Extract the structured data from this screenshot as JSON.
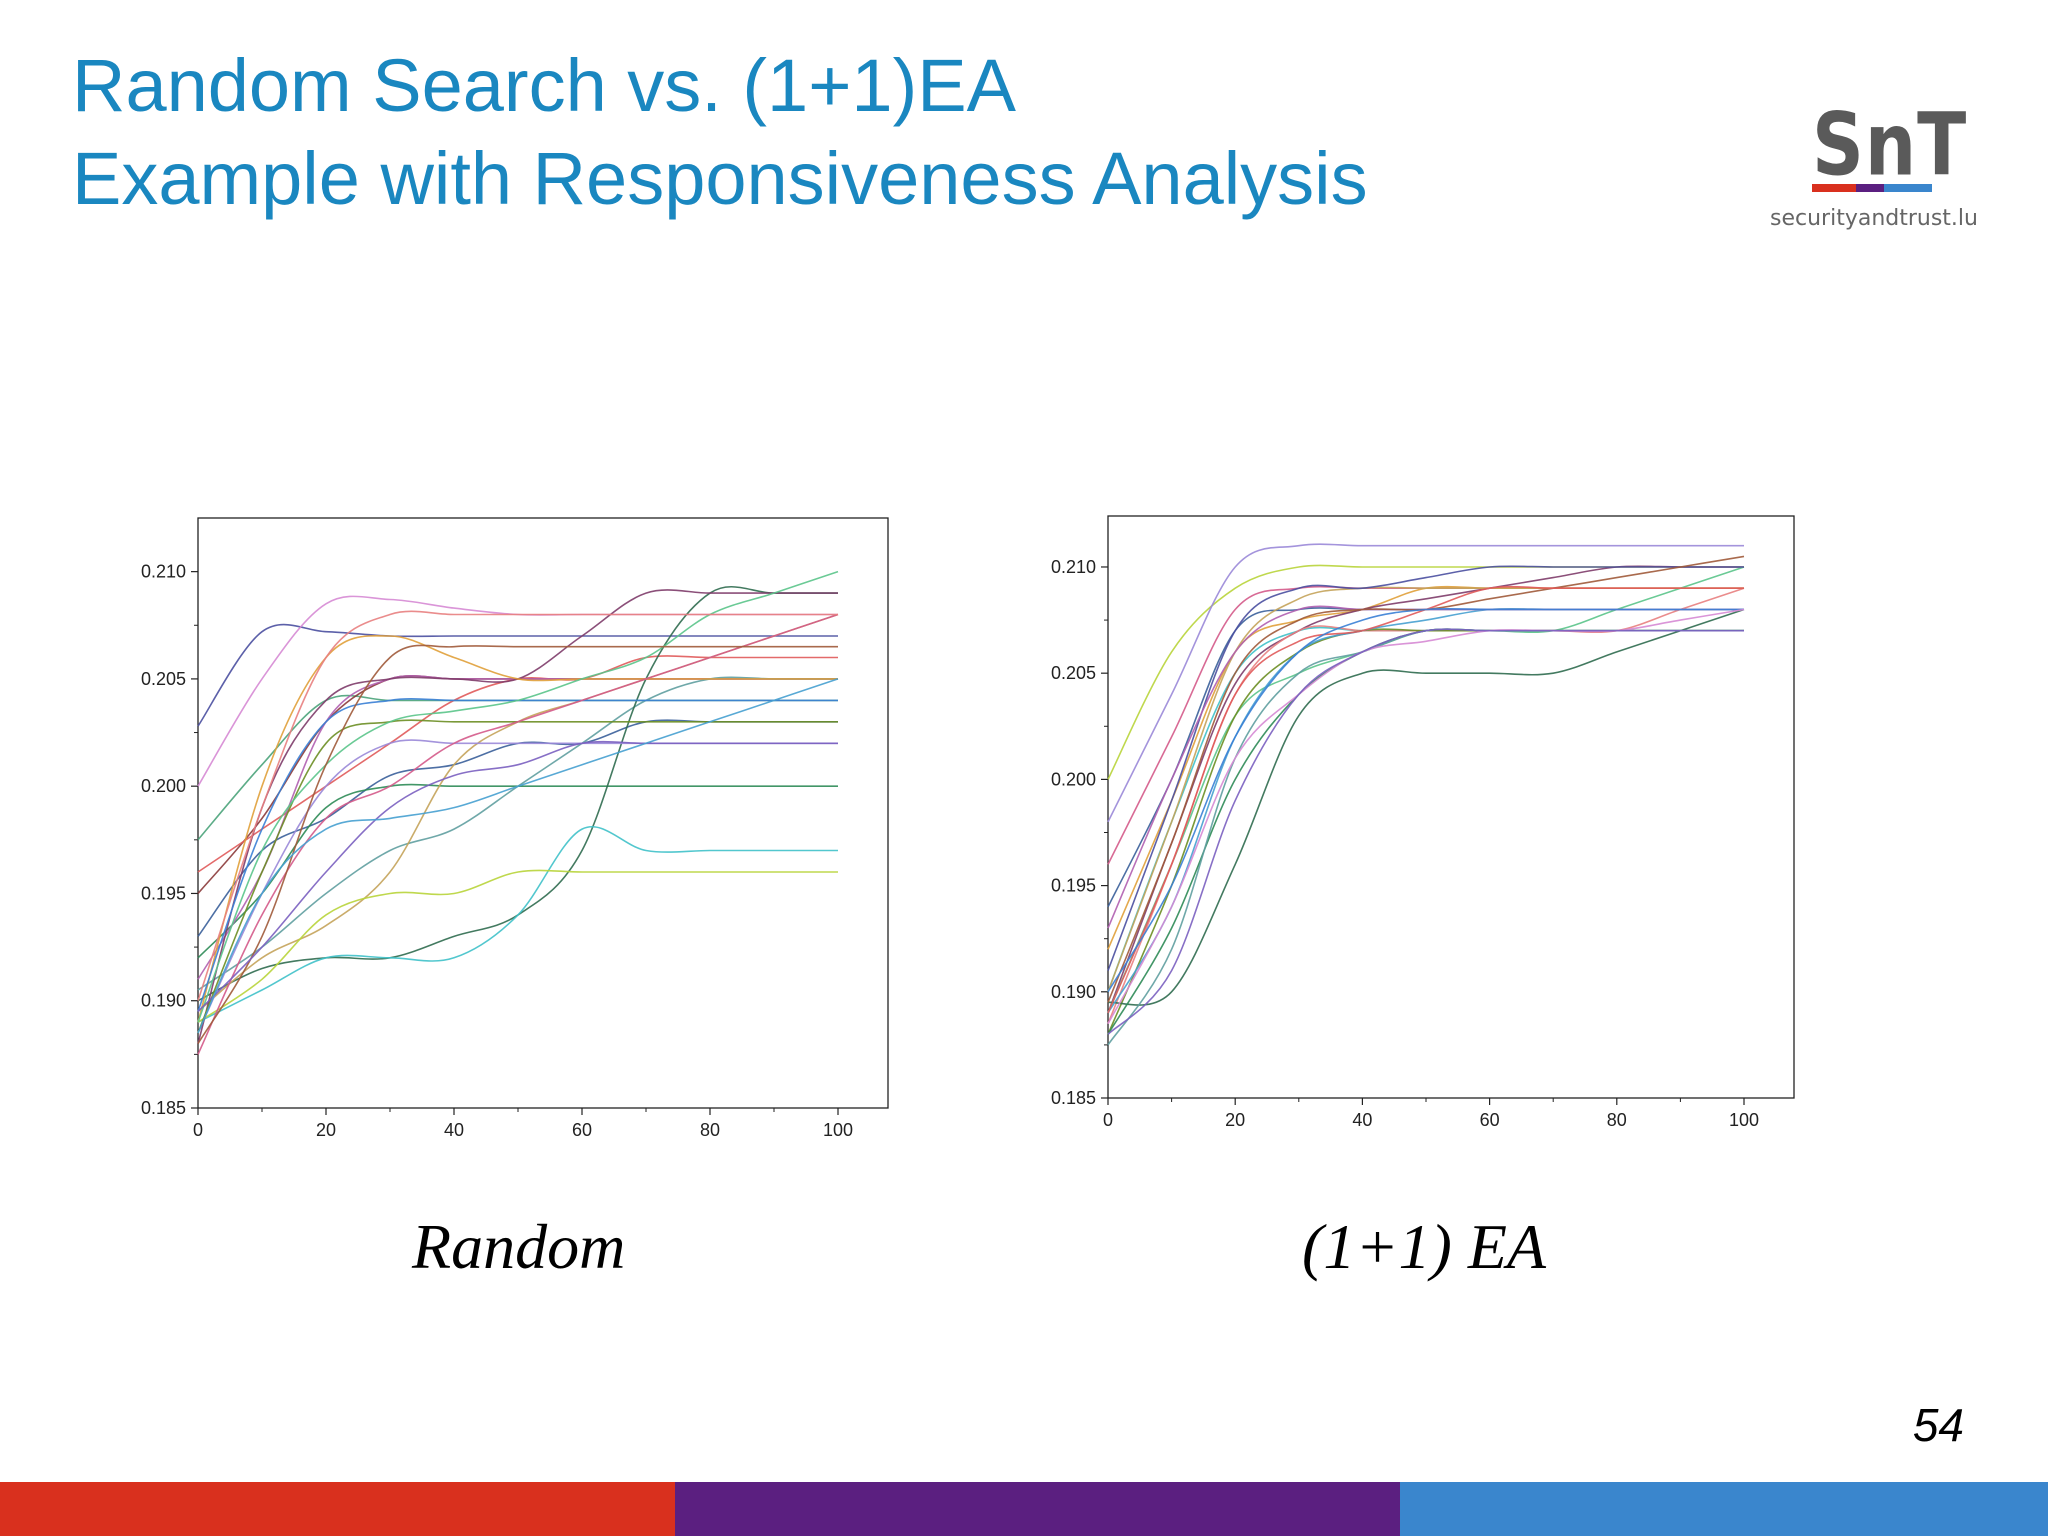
{
  "slide": {
    "title_line1": "Random Search vs. (1+1)EA",
    "title_line2": "Example with Responsiveness Analysis",
    "page_number": "54"
  },
  "logo": {
    "mark": "SnT",
    "subtitle": "securityandtrust.lu",
    "bar_colors": [
      "#d9301e",
      "#5b1f80",
      "#3a86cd"
    ]
  },
  "footer": {
    "colors": [
      "#d9301e",
      "#5b1f80",
      "#3a86cd"
    ]
  },
  "captions": {
    "random": "Random",
    "ea": "(1+1) EA"
  },
  "chart_data": [
    {
      "id": "random",
      "type": "line",
      "title": "",
      "xlabel": "",
      "ylabel": "",
      "xlim": [
        0,
        100
      ],
      "ylim": [
        0.185,
        0.2125
      ],
      "x_ticks": [
        0,
        20,
        40,
        60,
        80,
        100
      ],
      "y_ticks": [
        0.185,
        0.19,
        0.195,
        0.2,
        0.205,
        0.21
      ],
      "y_tick_labels": [
        "0.185",
        "0.190",
        "0.195",
        "0.200",
        "0.205",
        "0.210"
      ],
      "x": [
        0,
        10,
        20,
        30,
        40,
        50,
        60,
        70,
        80,
        90,
        100
      ],
      "series": [
        {
          "values": [
            0.2028,
            0.2072,
            0.2072,
            0.207,
            0.207,
            0.207,
            0.207,
            0.207,
            0.207,
            0.207,
            0.207
          ],
          "color": "#4a4fa0"
        },
        {
          "values": [
            0.2,
            0.205,
            0.2085,
            0.2087,
            0.2083,
            0.208,
            0.208,
            0.208,
            0.208,
            0.208,
            0.208
          ],
          "color": "#d68ad4"
        },
        {
          "values": [
            0.1975,
            0.201,
            0.204,
            0.204,
            0.204,
            0.204,
            0.204,
            0.204,
            0.204,
            0.204,
            0.204
          ],
          "color": "#4aa37a"
        },
        {
          "values": [
            0.195,
            0.1985,
            0.203,
            0.205,
            0.205,
            0.205,
            0.205,
            0.205,
            0.205,
            0.205,
            0.205
          ],
          "color": "#8b3a3a"
        },
        {
          "values": [
            0.196,
            0.198,
            0.2,
            0.202,
            0.204,
            0.205,
            0.205,
            0.206,
            0.206,
            0.206,
            0.206
          ],
          "color": "#e05a5a"
        },
        {
          "values": [
            0.193,
            0.197,
            0.1985,
            0.2005,
            0.201,
            0.202,
            0.202,
            0.203,
            0.203,
            0.203,
            0.203
          ],
          "color": "#3a5f9a"
        },
        {
          "values": [
            0.192,
            0.195,
            0.199,
            0.2,
            0.2,
            0.2,
            0.2,
            0.2,
            0.2,
            0.2,
            0.2
          ],
          "color": "#2e8b57"
        },
        {
          "values": [
            0.191,
            0.196,
            0.203,
            0.205,
            0.205,
            0.205,
            0.205,
            0.205,
            0.205,
            0.205,
            0.205
          ],
          "color": "#b05fb0"
        },
        {
          "values": [
            0.1905,
            0.1925,
            0.195,
            0.197,
            0.198,
            0.2,
            0.202,
            0.204,
            0.205,
            0.205,
            0.205
          ],
          "color": "#5f9ea0"
        },
        {
          "values": [
            0.19,
            0.1915,
            0.192,
            0.192,
            0.193,
            0.194,
            0.197,
            0.205,
            0.209,
            0.209,
            0.209
          ],
          "color": "#2f6b4f"
        },
        {
          "values": [
            0.1895,
            0.192,
            0.1935,
            0.196,
            0.201,
            0.203,
            0.204,
            0.205,
            0.206,
            0.207,
            0.208
          ],
          "color": "#c4a35a"
        },
        {
          "values": [
            0.189,
            0.1905,
            0.192,
            0.192,
            0.192,
            0.194,
            0.198,
            0.197,
            0.197,
            0.197,
            0.197
          ],
          "color": "#3fc1c9"
        },
        {
          "values": [
            0.189,
            0.191,
            0.194,
            0.195,
            0.195,
            0.196,
            0.196,
            0.196,
            0.196,
            0.196,
            0.196
          ],
          "color": "#b8d43a"
        },
        {
          "values": [
            0.1885,
            0.195,
            0.2,
            0.202,
            0.202,
            0.202,
            0.202,
            0.202,
            0.202,
            0.202,
            0.202
          ],
          "color": "#9a88d8"
        },
        {
          "values": [
            0.188,
            0.199,
            0.204,
            0.205,
            0.205,
            0.205,
            0.207,
            0.209,
            0.209,
            0.209,
            0.209
          ],
          "color": "#7e3c6a"
        },
        {
          "values": [
            0.189,
            0.2,
            0.206,
            0.207,
            0.206,
            0.205,
            0.205,
            0.205,
            0.205,
            0.205,
            0.205
          ],
          "color": "#e0a03a"
        },
        {
          "values": [
            0.1895,
            0.198,
            0.203,
            0.204,
            0.204,
            0.204,
            0.204,
            0.204,
            0.204,
            0.204,
            0.204
          ],
          "color": "#3a7fd5"
        },
        {
          "values": [
            0.1885,
            0.196,
            0.202,
            0.203,
            0.203,
            0.203,
            0.203,
            0.203,
            0.203,
            0.203,
            0.203
          ],
          "color": "#6b8e23"
        },
        {
          "values": [
            0.1875,
            0.194,
            0.1985,
            0.2,
            0.202,
            0.203,
            0.204,
            0.205,
            0.206,
            0.207,
            0.208
          ],
          "color": "#d45a8a"
        },
        {
          "values": [
            0.189,
            0.197,
            0.201,
            0.203,
            0.2035,
            0.204,
            0.205,
            0.206,
            0.208,
            0.209,
            0.21
          ],
          "color": "#5ac48a"
        },
        {
          "values": [
            0.188,
            0.193,
            0.201,
            0.206,
            0.2065,
            0.2065,
            0.2065,
            0.2065,
            0.2065,
            0.2065,
            0.2065
          ],
          "color": "#a05a3a"
        },
        {
          "values": [
            0.1895,
            0.1925,
            0.196,
            0.199,
            0.2005,
            0.201,
            0.202,
            0.202,
            0.202,
            0.202,
            0.202
          ],
          "color": "#7a5fc0"
        },
        {
          "values": [
            0.19,
            0.199,
            0.206,
            0.208,
            0.208,
            0.208,
            0.208,
            0.208,
            0.208,
            0.208,
            0.208
          ],
          "color": "#e87f7f"
        },
        {
          "values": [
            0.1885,
            0.195,
            0.198,
            0.1985,
            0.199,
            0.2,
            0.201,
            0.202,
            0.203,
            0.204,
            0.205
          ],
          "color": "#46a0d0"
        }
      ]
    },
    {
      "id": "ea",
      "type": "line",
      "title": "",
      "xlabel": "",
      "ylabel": "",
      "xlim": [
        0,
        100
      ],
      "ylim": [
        0.185,
        0.2124
      ],
      "x_ticks": [
        0,
        20,
        40,
        60,
        80,
        100
      ],
      "y_ticks": [
        0.185,
        0.19,
        0.195,
        0.2,
        0.205,
        0.21
      ],
      "y_tick_labels": [
        "0.185",
        "0.190",
        "0.195",
        "0.200",
        "0.205",
        "0.210"
      ],
      "x": [
        0,
        10,
        20,
        30,
        40,
        50,
        60,
        70,
        80,
        90,
        100
      ],
      "series": [
        {
          "values": [
            0.2,
            0.206,
            0.209,
            0.21,
            0.21,
            0.21,
            0.21,
            0.21,
            0.21,
            0.21,
            0.21
          ],
          "color": "#b8d43a"
        },
        {
          "values": [
            0.198,
            0.204,
            0.21,
            0.211,
            0.211,
            0.211,
            0.211,
            0.211,
            0.211,
            0.211,
            0.211
          ],
          "color": "#9a88d8"
        },
        {
          "values": [
            0.196,
            0.202,
            0.208,
            0.209,
            0.209,
            0.209,
            0.209,
            0.209,
            0.209,
            0.209,
            0.209
          ],
          "color": "#d45a8a"
        },
        {
          "values": [
            0.194,
            0.2,
            0.207,
            0.208,
            0.208,
            0.208,
            0.208,
            0.208,
            0.208,
            0.208,
            0.208
          ],
          "color": "#3a5f9a"
        },
        {
          "values": [
            0.192,
            0.199,
            0.206,
            0.2075,
            0.208,
            0.209,
            0.209,
            0.209,
            0.209,
            0.209,
            0.209
          ],
          "color": "#e0a03a"
        },
        {
          "values": [
            0.19,
            0.198,
            0.205,
            0.207,
            0.207,
            0.207,
            0.207,
            0.207,
            0.207,
            0.207,
            0.207
          ],
          "color": "#3fc1c9"
        },
        {
          "values": [
            0.189,
            0.197,
            0.2045,
            0.207,
            0.208,
            0.2085,
            0.209,
            0.2095,
            0.21,
            0.21,
            0.21
          ],
          "color": "#7e3c6a"
        },
        {
          "values": [
            0.189,
            0.196,
            0.203,
            0.205,
            0.206,
            0.207,
            0.207,
            0.207,
            0.208,
            0.209,
            0.21
          ],
          "color": "#5ac48a"
        },
        {
          "values": [
            0.1885,
            0.196,
            0.204,
            0.207,
            0.207,
            0.207,
            0.207,
            0.207,
            0.207,
            0.208,
            0.209
          ],
          "color": "#e87f7f"
        },
        {
          "values": [
            0.188,
            0.195,
            0.203,
            0.206,
            0.207,
            0.207,
            0.207,
            0.207,
            0.207,
            0.207,
            0.207
          ],
          "color": "#6b8e23"
        },
        {
          "values": [
            0.1895,
            0.19,
            0.196,
            0.203,
            0.205,
            0.205,
            0.205,
            0.205,
            0.206,
            0.207,
            0.208
          ],
          "color": "#2f6b4f"
        },
        {
          "values": [
            0.189,
            0.194,
            0.202,
            0.206,
            0.207,
            0.2075,
            0.208,
            0.208,
            0.208,
            0.208,
            0.208
          ],
          "color": "#46a0d0"
        },
        {
          "values": [
            0.19,
            0.198,
            0.206,
            0.2085,
            0.209,
            0.209,
            0.209,
            0.209,
            0.209,
            0.209,
            0.209
          ],
          "color": "#c4a35a"
        },
        {
          "values": [
            0.191,
            0.199,
            0.207,
            0.209,
            0.209,
            0.2095,
            0.21,
            0.21,
            0.21,
            0.21,
            0.21
          ],
          "color": "#4a4fa0"
        },
        {
          "values": [
            0.193,
            0.2,
            0.206,
            0.208,
            0.208,
            0.208,
            0.208,
            0.208,
            0.208,
            0.208,
            0.208
          ],
          "color": "#b05fb0"
        },
        {
          "values": [
            0.188,
            0.193,
            0.2,
            0.204,
            0.206,
            0.207,
            0.207,
            0.207,
            0.207,
            0.207,
            0.207
          ],
          "color": "#2e8b57"
        },
        {
          "values": [
            0.1895,
            0.197,
            0.205,
            0.2075,
            0.208,
            0.208,
            0.2085,
            0.209,
            0.2095,
            0.21,
            0.2105
          ],
          "color": "#a05a3a"
        },
        {
          "values": [
            0.1875,
            0.192,
            0.201,
            0.205,
            0.206,
            0.207,
            0.207,
            0.207,
            0.207,
            0.207,
            0.207
          ],
          "color": "#5f9ea0"
        },
        {
          "values": [
            0.189,
            0.196,
            0.204,
            0.2065,
            0.207,
            0.208,
            0.209,
            0.209,
            0.209,
            0.209,
            0.209
          ],
          "color": "#e05a5a"
        },
        {
          "values": [
            0.19,
            0.195,
            0.202,
            0.206,
            0.2075,
            0.208,
            0.208,
            0.208,
            0.208,
            0.208,
            0.208
          ],
          "color": "#3a7fd5"
        },
        {
          "values": [
            0.1885,
            0.194,
            0.201,
            0.204,
            0.206,
            0.2065,
            0.207,
            0.207,
            0.207,
            0.2075,
            0.208
          ],
          "color": "#d68ad4"
        },
        {
          "values": [
            0.188,
            0.191,
            0.199,
            0.204,
            0.206,
            0.207,
            0.207,
            0.207,
            0.207,
            0.207,
            0.207
          ],
          "color": "#7a5fc0"
        }
      ]
    }
  ]
}
